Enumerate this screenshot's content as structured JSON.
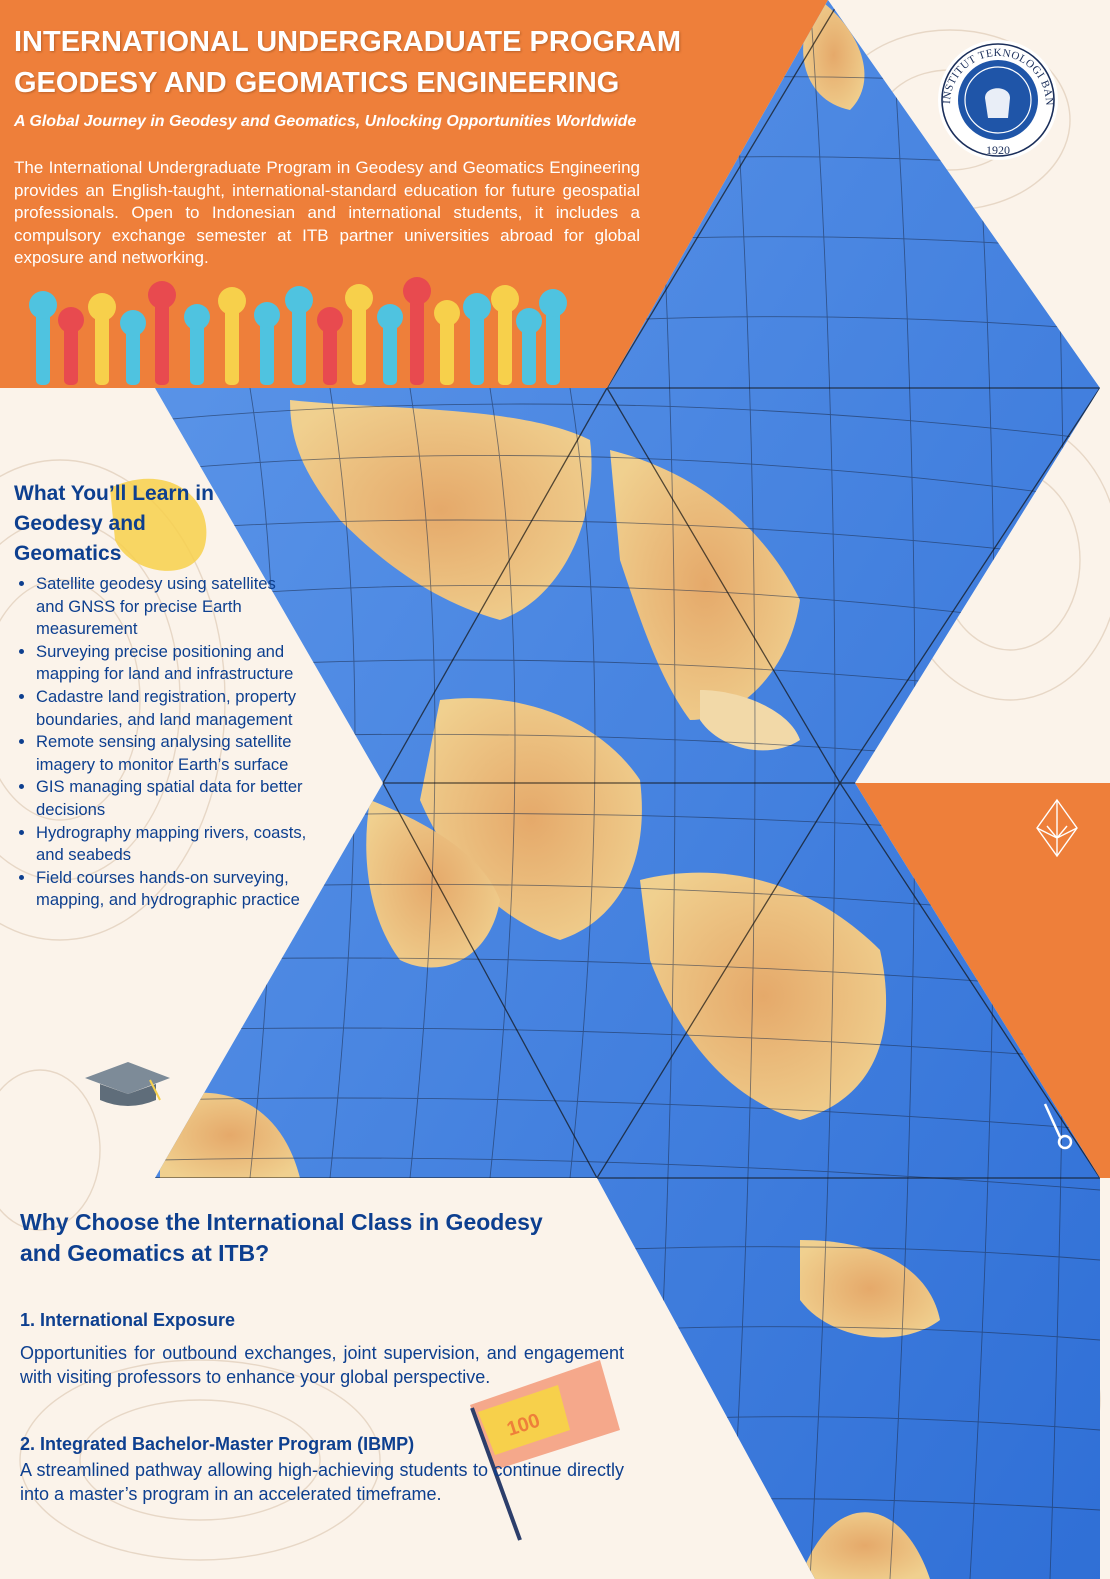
{
  "header": {
    "title_line1": "INTERNATIONAL UNDERGRADUATE PROGRAM",
    "title_line2": "GEODESY AND GEOMATICS ENGINEERING",
    "subtitle": "A Global Journey in Geodesy and Geomatics, Unlocking Opportunities Worldwide",
    "intro": "The International Undergraduate Program in Geodesy and Geomatics Engineering provides an English-taught, international-standard education for future geospatial professionals. Open to Indonesian and international students, it includes a compulsory exchange semester at ITB partner universities abroad for global exposure and networking."
  },
  "logo": {
    "institution": "INSTITUT TEKNOLOGI BANDUNG",
    "year": "1920"
  },
  "learn": {
    "heading": "What You’ll Learn in Geodesy and Geomatics",
    "items": [
      "Satellite geodesy using satellites and GNSS for precise Earth measurement",
      "Surveying precise positioning and mapping for land and infrastructure",
      "Cadastre land registration, property boundaries, and land management",
      "Remote sensing analysing satellite imagery to monitor Earth’s surface",
      "GIS managing spatial data for better decisions",
      "Hydrography mapping rivers, coasts, and seabeds",
      "Field courses hands-on surveying, mapping, and hydrographic practice"
    ]
  },
  "why": {
    "heading": "Why Choose the International Class in Geodesy and Geomatics at ITB?",
    "points": [
      {
        "title": "1. International Exposure",
        "text": "Opportunities for outbound exchanges, joint supervision, and engagement with visiting professors to enhance your global perspective."
      },
      {
        "title": "2. Integrated Bachelor-Master Program (IBMP)",
        "text": "A streamlined pathway allowing high-achieving students to continue directly into a master’s program in an accelerated timeframe."
      }
    ]
  },
  "decor": {
    "flag_text": "100",
    "icons": [
      "raised-hands-illustration",
      "graduation-cap-icon",
      "octahedron-icon",
      "scissors-icon",
      "flag-icon",
      "icosahedron-world-map"
    ]
  },
  "colors": {
    "orange": "#ee7f3a",
    "navy": "#0d3f8f",
    "ocean": "#3f7fdc",
    "land": "#ecc27f",
    "cream": "#fbf3ea"
  }
}
